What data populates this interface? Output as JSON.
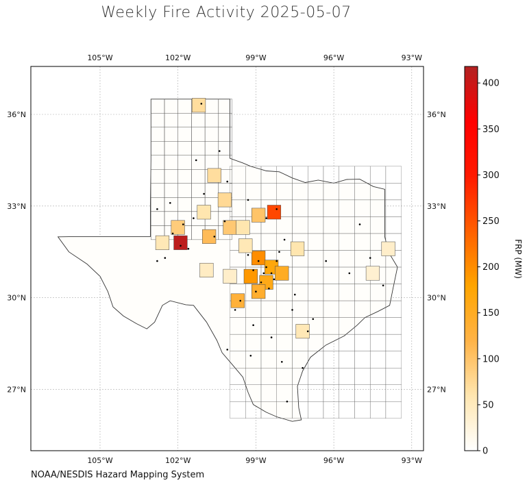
{
  "title": "Weekly Fire Activity 2025-05-07",
  "attribution": "NOAA/NESDIS Hazard Mapping System",
  "map": {
    "lon_labels": [
      "105°W",
      "102°W",
      "99°W",
      "96°W",
      "93°W"
    ],
    "lat_labels": [
      "36°N",
      "33°N",
      "30°N",
      "27°N"
    ],
    "lon_values": [
      -105,
      -102,
      -99,
      -96,
      -93
    ],
    "lat_values": [
      36,
      33,
      30,
      27
    ],
    "extent": {
      "lon_min": -107.6,
      "lon_max": -92.5,
      "lat_min": 25.0,
      "lat_max": 37.5
    },
    "gridlines": true,
    "region": "Texas counties"
  },
  "colorbar": {
    "label": "FRP (MW)",
    "min": 0,
    "max": 418,
    "ticks": [
      "0",
      "50",
      "100",
      "150",
      "200",
      "250",
      "300",
      "350",
      "400"
    ],
    "tick_values": [
      0,
      50,
      100,
      150,
      200,
      250,
      300,
      350,
      400
    ],
    "colors": [
      "#ffffff",
      "#ffe6b0",
      "#ffb347",
      "#ffa500",
      "#ff6000",
      "#ff1a00",
      "#ff0000",
      "#b22222"
    ],
    "placement": "right"
  },
  "fire_counties": [
    {
      "lon": -101.2,
      "lat": 36.3,
      "frp": 70
    },
    {
      "lon": -100.6,
      "lat": 34.0,
      "frp": 70
    },
    {
      "lon": -100.2,
      "lat": 33.2,
      "frp": 75
    },
    {
      "lon": -101.0,
      "lat": 32.8,
      "frp": 60
    },
    {
      "lon": -102.0,
      "lat": 32.3,
      "frp": 90
    },
    {
      "lon": -101.9,
      "lat": 31.8,
      "frp": 410
    },
    {
      "lon": -102.6,
      "lat": 31.8,
      "frp": 55
    },
    {
      "lon": -100.8,
      "lat": 32.0,
      "frp": 110
    },
    {
      "lon": -100.0,
      "lat": 32.3,
      "frp": 95
    },
    {
      "lon": -99.5,
      "lat": 32.3,
      "frp": 60
    },
    {
      "lon": -98.9,
      "lat": 32.7,
      "frp": 100
    },
    {
      "lon": -98.3,
      "lat": 32.8,
      "frp": 260
    },
    {
      "lon": -98.9,
      "lat": 31.3,
      "frp": 200
    },
    {
      "lon": -98.4,
      "lat": 31.0,
      "frp": 170
    },
    {
      "lon": -99.2,
      "lat": 30.7,
      "frp": 190
    },
    {
      "lon": -98.6,
      "lat": 30.5,
      "frp": 160
    },
    {
      "lon": -98.0,
      "lat": 30.8,
      "frp": 150
    },
    {
      "lon": -99.7,
      "lat": 29.9,
      "frp": 130
    },
    {
      "lon": -98.9,
      "lat": 30.2,
      "frp": 140
    },
    {
      "lon": -100.9,
      "lat": 30.9,
      "frp": 45
    },
    {
      "lon": -100.0,
      "lat": 30.7,
      "frp": 40
    },
    {
      "lon": -97.4,
      "lat": 31.6,
      "frp": 60
    },
    {
      "lon": -99.4,
      "lat": 31.7,
      "frp": 55
    },
    {
      "lon": -97.2,
      "lat": 28.9,
      "frp": 55
    },
    {
      "lon": -94.5,
      "lat": 30.8,
      "frp": 35
    },
    {
      "lon": -93.9,
      "lat": 31.6,
      "frp": 40
    }
  ],
  "fire_points": [
    [
      -101.1,
      36.35
    ],
    [
      -101.4,
      32.6
    ],
    [
      -101.8,
      32.4
    ],
    [
      -102.2,
      32.1
    ],
    [
      -101.9,
      31.7
    ],
    [
      -101.6,
      31.6
    ],
    [
      -102.5,
      31.3
    ],
    [
      -102.8,
      31.2
    ],
    [
      -100.6,
      32.0
    ],
    [
      -100.2,
      32.5
    ],
    [
      -99.3,
      31.4
    ],
    [
      -98.9,
      31.2
    ],
    [
      -98.6,
      31.0
    ],
    [
      -98.4,
      30.8
    ],
    [
      -98.8,
      30.5
    ],
    [
      -99.0,
      30.2
    ],
    [
      -98.5,
      30.3
    ],
    [
      -98.2,
      31.2
    ],
    [
      -99.6,
      29.9
    ],
    [
      -99.8,
      29.6
    ],
    [
      -99.1,
      29.1
    ],
    [
      -98.4,
      28.7
    ],
    [
      -98.6,
      32.6
    ],
    [
      -98.2,
      32.9
    ],
    [
      -97.9,
      31.9
    ],
    [
      -97.5,
      30.1
    ],
    [
      -97.0,
      28.9
    ],
    [
      -98.0,
      27.9
    ],
    [
      -96.8,
      29.3
    ],
    [
      -97.6,
      29.6
    ],
    [
      -100.1,
      28.3
    ],
    [
      -99.2,
      28.1
    ],
    [
      -102.8,
      32.9
    ],
    [
      -101.0,
      33.4
    ],
    [
      -100.4,
      34.8
    ],
    [
      -95.0,
      32.4
    ],
    [
      -94.6,
      31.3
    ],
    [
      -94.1,
      30.4
    ],
    [
      -95.4,
      30.8
    ],
    [
      -96.3,
      31.2
    ],
    [
      -99.3,
      33.2
    ],
    [
      -100.1,
      33.8
    ],
    [
      -101.3,
      34.5
    ],
    [
      -102.3,
      33.1
    ],
    [
      -98.1,
      31.5
    ],
    [
      -98.7,
      30.8
    ],
    [
      -99.1,
      30.9
    ],
    [
      -98.3,
      30.6
    ],
    [
      -97.2,
      27.7
    ],
    [
      -97.8,
      26.6
    ]
  ]
}
